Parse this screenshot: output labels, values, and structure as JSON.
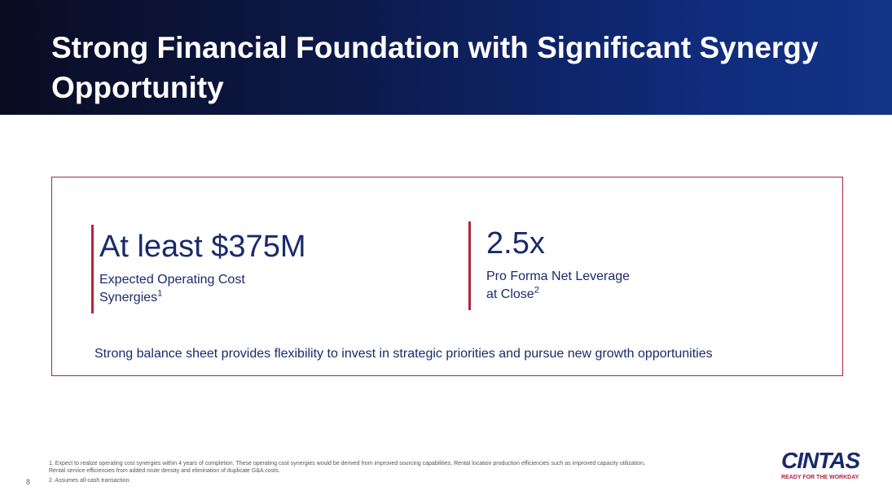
{
  "slide": {
    "title": "Strong Financial Foundation with Significant Synergy Opportunity",
    "page_number": "8"
  },
  "stats": [
    {
      "value": "At least $375M",
      "label_line1": "Expected Operating Cost",
      "label_line2": "Synergies",
      "footnote_ref": "1"
    },
    {
      "value": "2.5x",
      "label_line1": "Pro Forma Net Leverage",
      "label_line2": "at Close",
      "footnote_ref": "2"
    }
  ],
  "tagline": "Strong balance sheet provides flexibility to invest in strategic priorities and pursue new growth opportunities",
  "footnotes": [
    "1. Expect to realize operating cost synergies within 4 years of completion. These operating cost synergies would be derived from improved sourcing capabilities, Rental location production efficiencies such as improved capacity utilization, Rental service efficiencies from added route density and elimination of duplicate G&A costs.",
    "2. Assumes all-cash transaction."
  ],
  "logo": {
    "name": "CINTAS",
    "tagline": "READY FOR THE WORKDAY"
  },
  "colors": {
    "header_dark": "#0a0c22",
    "header_blue": "#123488",
    "accent_red": "#b0243f",
    "text_navy": "#1a2a6c"
  }
}
